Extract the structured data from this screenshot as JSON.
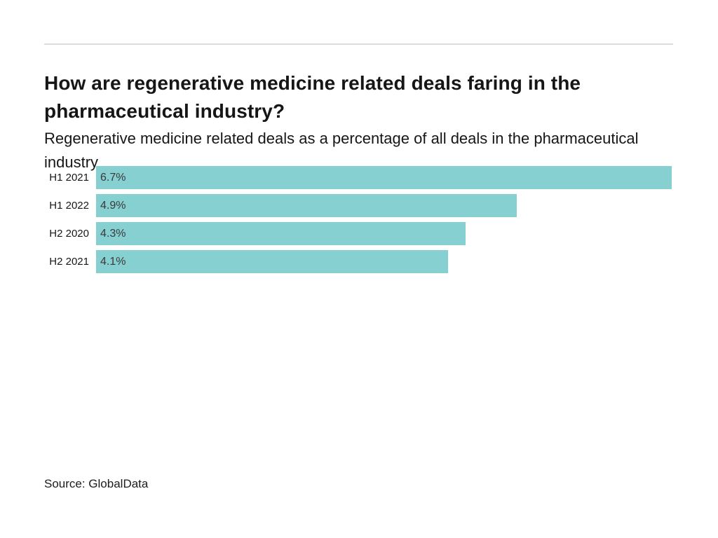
{
  "chart_data": {
    "type": "bar",
    "orientation": "horizontal",
    "title": "How are regenerative medicine related deals faring in the pharmaceutical industry?",
    "subtitle": "Regenerative medicine related deals as a percentage of all deals in the pharmaceutical industry",
    "categories": [
      "H1 2021",
      "H1 2022",
      "H2 2020",
      "H2 2021"
    ],
    "values": [
      6.7,
      4.9,
      4.3,
      4.1
    ],
    "value_labels": [
      "6.7%",
      "4.9%",
      "4.3%",
      "4.1%"
    ],
    "xlabel": "",
    "ylabel": "",
    "xlim": [
      0,
      6.72
    ],
    "grid": false,
    "legend": false,
    "bar_color": "#86d0d2",
    "source": "Source: GlobalData"
  }
}
